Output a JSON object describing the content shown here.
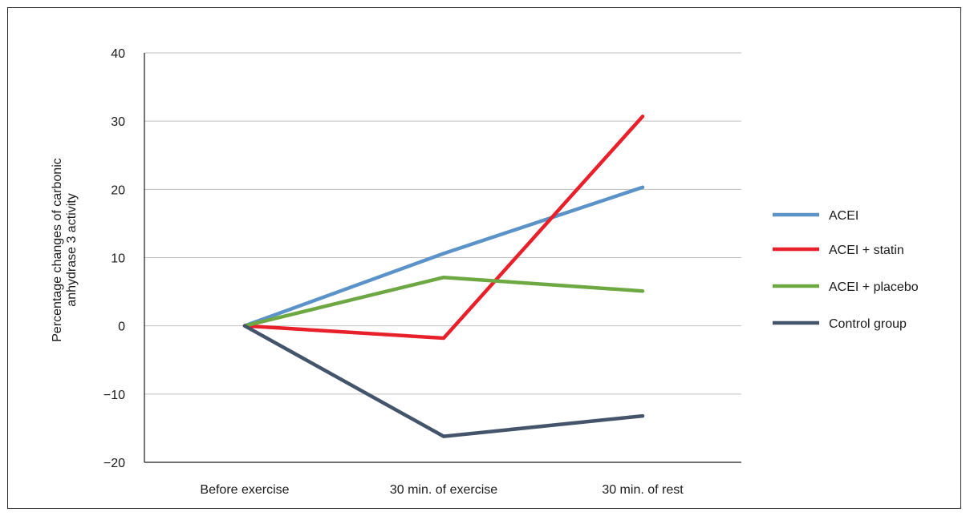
{
  "chart_data": {
    "type": "line",
    "categories": [
      "Before exercise",
      "30 min. of exercise",
      "30 min. of rest"
    ],
    "ylabel_lines": [
      "Percentage changes of carbonic",
      "anhydrase 3 activity"
    ],
    "ylim": [
      -20,
      40
    ],
    "yticks": [
      40,
      30,
      20,
      10,
      0,
      -10,
      -20
    ],
    "ytick_labels": [
      "40",
      "30",
      "20",
      "10",
      "0",
      "−10",
      "−20"
    ],
    "grid": true,
    "legend_position": "right",
    "series": [
      {
        "name": "ACEI",
        "color": "#5b93c9",
        "values": [
          0,
          10.6,
          20.3
        ]
      },
      {
        "name": "ACEI + statin",
        "color": "#e8202a",
        "values": [
          0,
          -1.8,
          30.7
        ]
      },
      {
        "name": "ACEI + placebo",
        "color": "#6ea843",
        "values": [
          0,
          7.1,
          5.1
        ]
      },
      {
        "name": "Control group",
        "color": "#44546a",
        "values": [
          0,
          -16.2,
          -13.2
        ]
      }
    ]
  }
}
